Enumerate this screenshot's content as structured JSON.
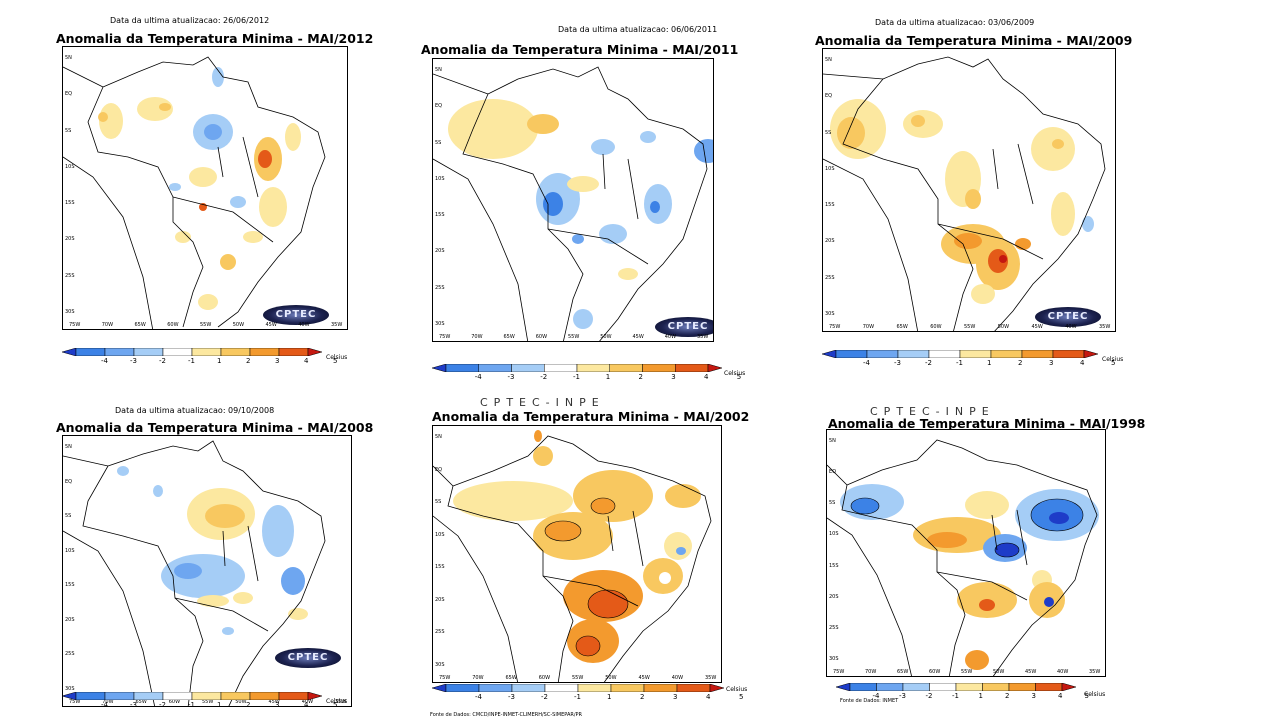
{
  "colors": {
    "scale": [
      "#1e3cc8",
      "#3c82e6",
      "#6ea6f0",
      "#a5cdf6",
      "#ffffff",
      "#fce8a0",
      "#f8c860",
      "#f39a2e",
      "#e45a18",
      "#c41810"
    ]
  },
  "legend": {
    "labels": [
      "-4",
      "-3",
      "-2",
      "-1",
      "1",
      "2",
      "3",
      "4",
      "5"
    ],
    "unit": "Celsius"
  },
  "lat_labels": [
    "5N",
    "EQ",
    "5S",
    "10S",
    "15S",
    "20S",
    "25S",
    "30S"
  ],
  "lon_labels": [
    "75W",
    "70W",
    "65W",
    "60W",
    "55W",
    "50W",
    "45W",
    "40W",
    "35W"
  ],
  "logo_text": "CPTEC",
  "panels": [
    {
      "update": "Data da ultima atualizacao: 26/06/2012",
      "title": "Anomalia da Temperatura Minima - MAI/2012",
      "header": "",
      "source": ""
    },
    {
      "update": "Data da ultima atualizacao: 06/06/2011",
      "title": "Anomalia da Temperatura Minima - MAI/2011",
      "header": "",
      "source": ""
    },
    {
      "update": "Data da ultima atualizacao: 03/06/2009",
      "title": "Anomalia da Temperatura Minima - MAI/2009",
      "header": "",
      "source": ""
    },
    {
      "update": "Data da ultima atualizacao: 09/10/2008",
      "title": "Anomalia da Temperatura Minima - MAI/2008",
      "header": "",
      "source": ""
    },
    {
      "update": "",
      "title": "Anomalia da Temperatura Minima - MAI/2002",
      "header": "CPTEC-INPE",
      "source": "Fonte de Dados: CMCD/INPE-INMET-CLIMERH/SC-SIMEPAR/PR"
    },
    {
      "update": "",
      "title": "Anomalia de Temperatura Minima - MAI/1998",
      "header": "CPTEC-INPE",
      "source": "Fonte de Dados: INMET"
    }
  ]
}
